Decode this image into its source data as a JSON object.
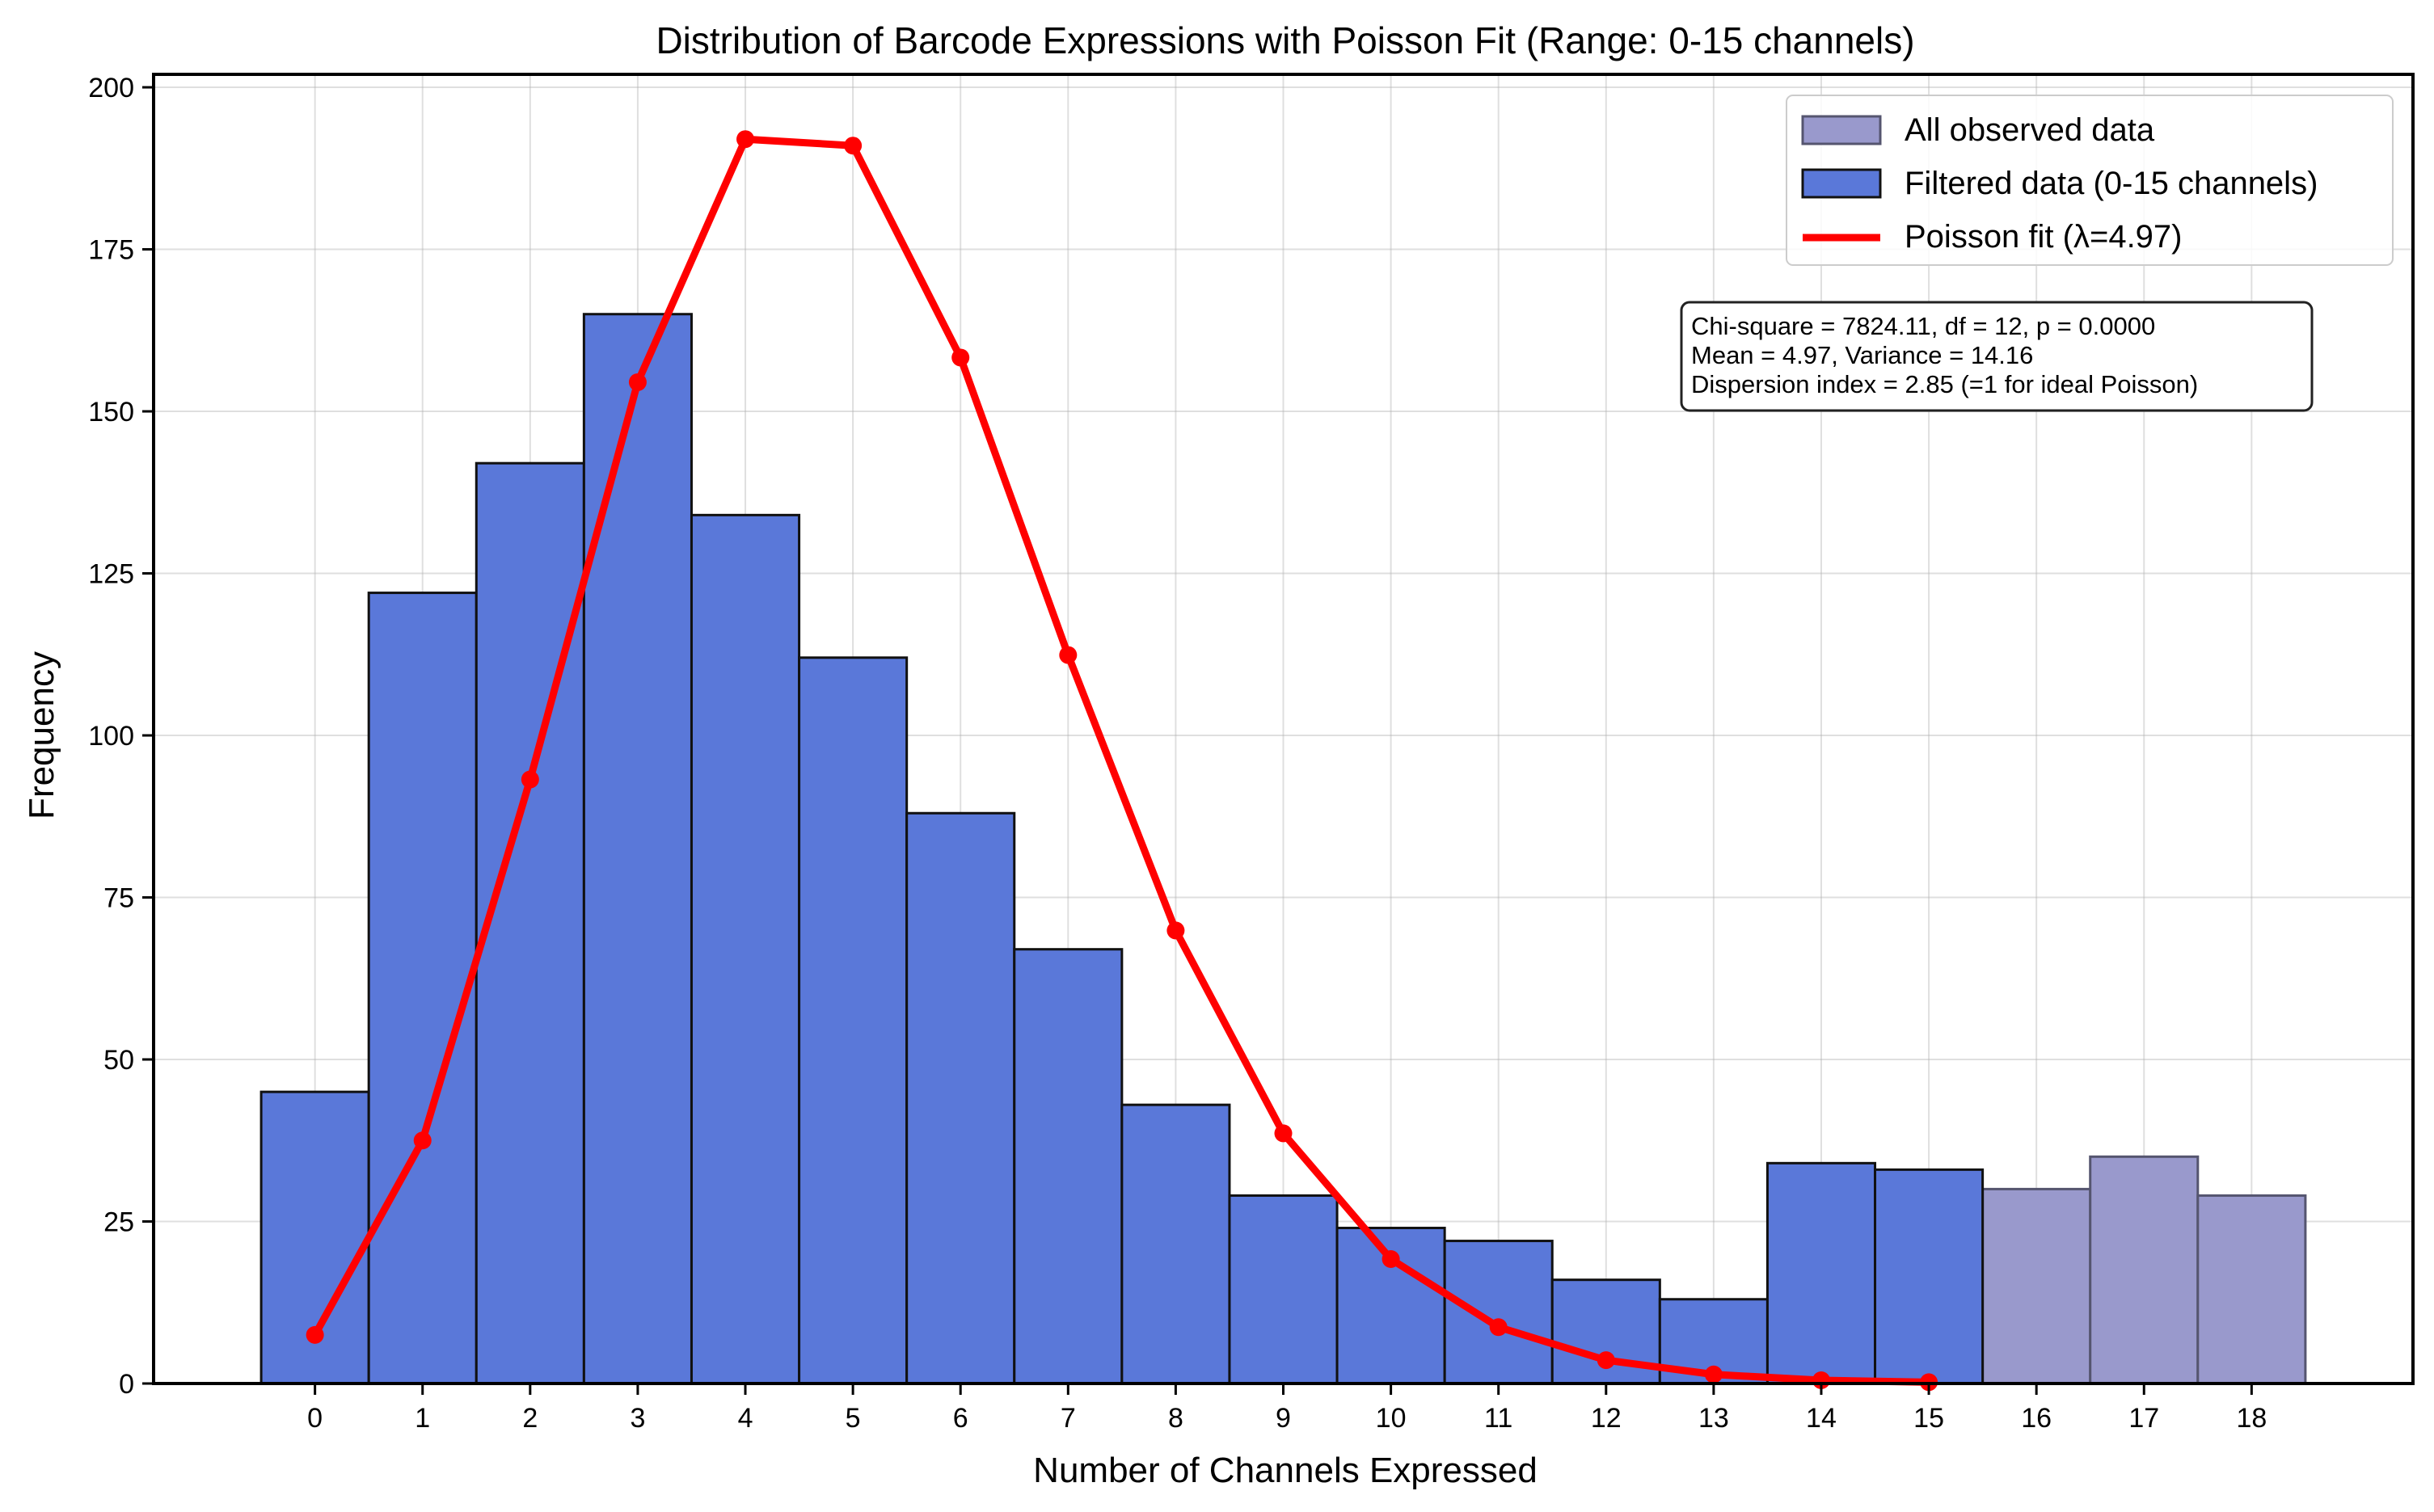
{
  "chart_data": {
    "type": "bar",
    "title": "Distribution of Barcode Expressions with Poisson Fit (Range: 0-15 channels)",
    "xlabel": "Number of Channels Expressed",
    "ylabel": "Frequency",
    "xlim": [
      -1.5,
      19.5
    ],
    "ylim": [
      0,
      202
    ],
    "x_ticks": [
      "0",
      "1",
      "2",
      "3",
      "4",
      "5",
      "6",
      "7",
      "8",
      "9",
      "10",
      "11",
      "12",
      "13",
      "14",
      "15",
      "16",
      "17",
      "18"
    ],
    "y_ticks": [
      "0",
      "25",
      "50",
      "75",
      "100",
      "125",
      "150",
      "175",
      "200"
    ],
    "grid": true,
    "legend_position": "top-right",
    "series": [
      {
        "name": "All observed data",
        "kind": "bar",
        "color": "#9999cc",
        "x": [
          16,
          17,
          18
        ],
        "values": [
          30,
          35,
          29
        ]
      },
      {
        "name": "Filtered data (0-15 channels)",
        "kind": "bar",
        "color": "#5a78d9",
        "x": [
          0,
          1,
          2,
          3,
          4,
          5,
          6,
          7,
          8,
          9,
          10,
          11,
          12,
          13,
          14,
          15
        ],
        "values": [
          45,
          122,
          142,
          165,
          134,
          112,
          88,
          67,
          43,
          29,
          24,
          22,
          16,
          13,
          34,
          33
        ]
      },
      {
        "name": "Poisson fit (λ=4.97)",
        "kind": "line",
        "color": "#ff0000",
        "x": [
          0,
          1,
          2,
          3,
          4,
          5,
          6,
          7,
          8,
          9,
          10,
          11,
          12,
          13,
          14,
          15
        ],
        "values": [
          7.5,
          37.5,
          93.2,
          154.5,
          192,
          191,
          158.3,
          112.4,
          69.9,
          38.6,
          19.2,
          8.7,
          3.6,
          1.4,
          0.5,
          0.2
        ]
      }
    ],
    "annotation": [
      "Chi-square = 7824.11, df = 12, p = 0.0000",
      "Mean = 4.97, Variance = 14.16",
      "Dispersion index = 2.85 (=1 for ideal Poisson)"
    ]
  }
}
